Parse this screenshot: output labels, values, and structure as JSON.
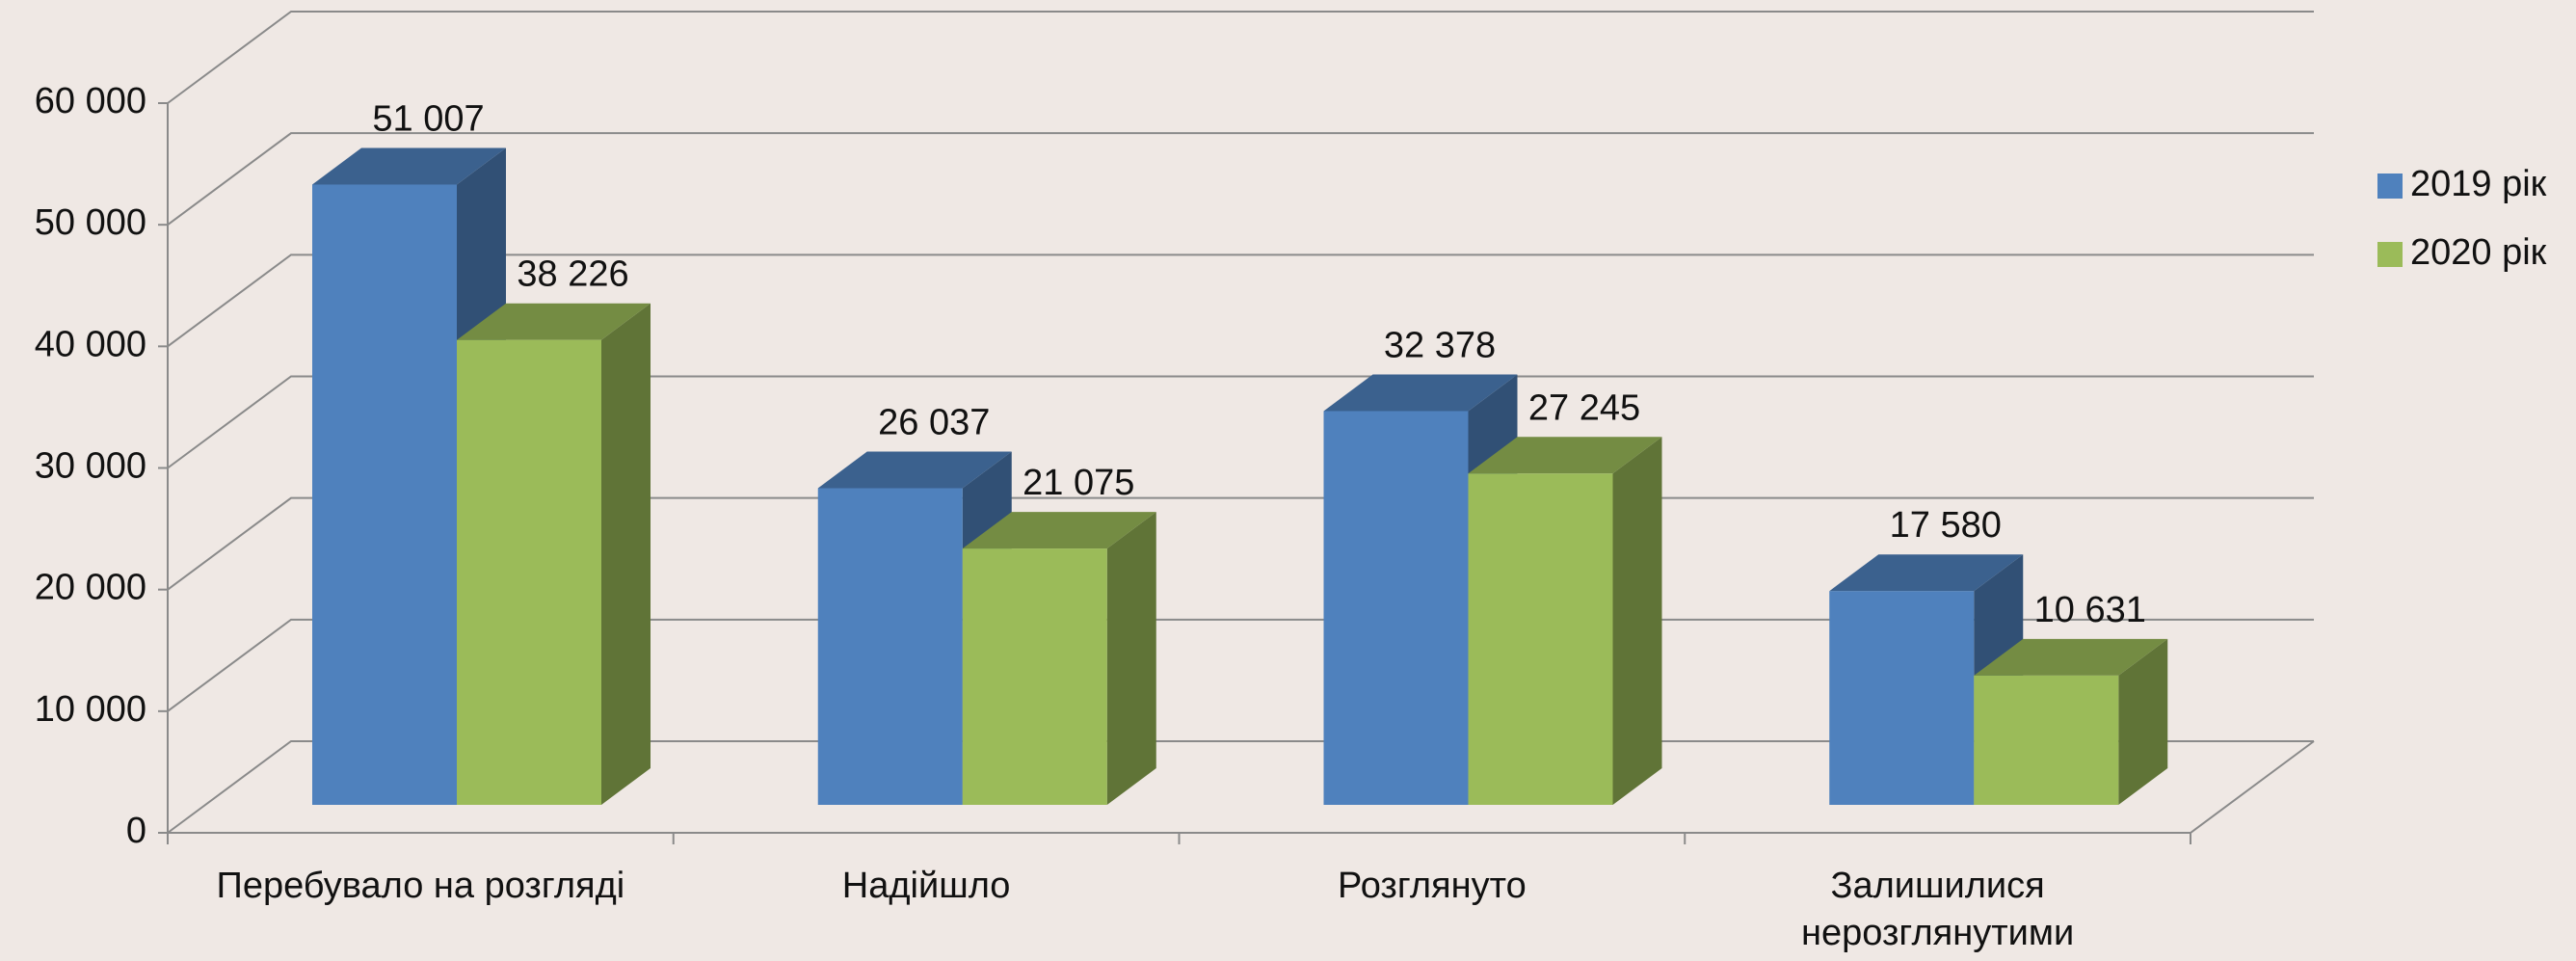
{
  "chart_data": {
    "type": "bar3d",
    "categories": [
      "Перебувало на розгляді",
      "Надійшло",
      "Розглянуто",
      "Залишилися нерозглянутими"
    ],
    "series": [
      {
        "name": "2019 рік",
        "color": "#4f81bd",
        "values": [
          51007,
          26037,
          32378,
          17580
        ],
        "value_labels": [
          "51 007",
          "26 037",
          "32 378",
          "17 580"
        ]
      },
      {
        "name": "2020 рік",
        "color": "#9bbb59",
        "values": [
          38226,
          21075,
          27245,
          10631
        ],
        "value_labels": [
          "38 226",
          "21 075",
          "27 245",
          "10 631"
        ]
      }
    ],
    "ylim": [
      0,
      60000
    ],
    "yticks": [
      0,
      {
        "value": 10000,
        "label": "10 000"
      },
      {
        "value": 20000,
        "label": "20 000"
      },
      {
        "value": 30000,
        "label": "30 000"
      },
      {
        "value": 40000,
        "label": "40 000"
      },
      {
        "value": 50000,
        "label": "50 000"
      },
      {
        "value": 60000,
        "label": "60 000"
      }
    ],
    "grid": true,
    "legend": "right"
  }
}
